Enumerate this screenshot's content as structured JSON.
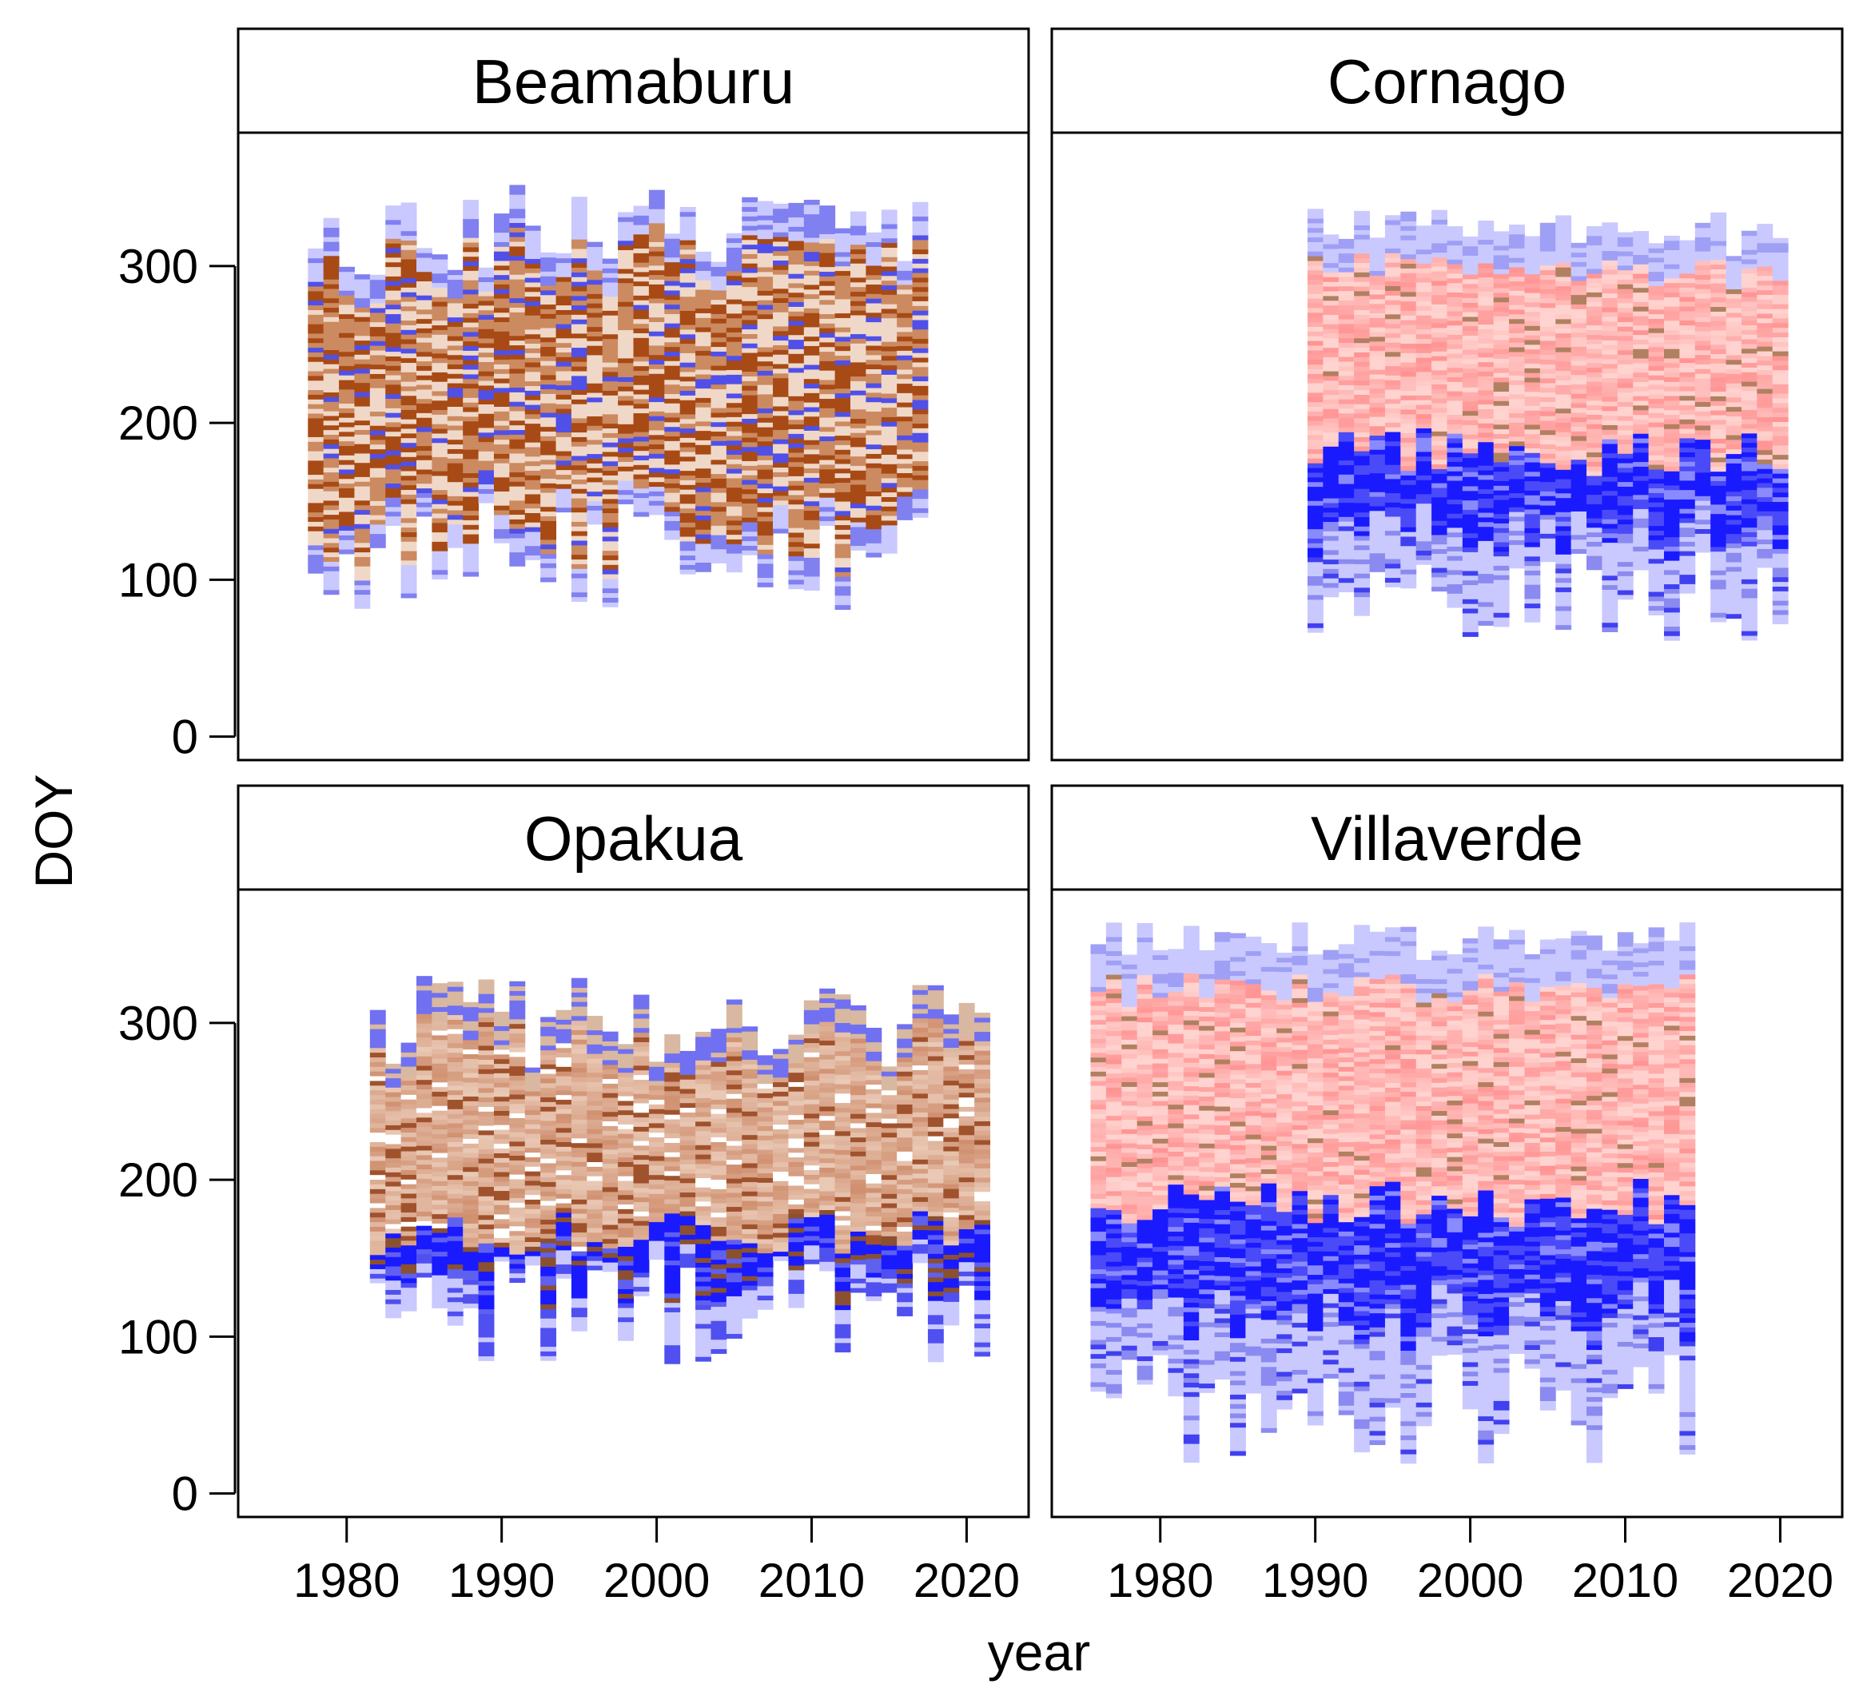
{
  "chart_data": {
    "type": "heatmap",
    "title": "",
    "xlabel": "year",
    "ylabel": "DOY",
    "xlim": [
      1973,
      2024
    ],
    "ylim": [
      -15,
      385
    ],
    "x_ticks": [
      1980,
      1990,
      2000,
      2010,
      2020
    ],
    "x_tick_labels": [
      "1980",
      "1990",
      "2000",
      "2010",
      "2020"
    ],
    "y_ticks": [
      0,
      100,
      200,
      300
    ],
    "y_tick_labels": [
      "0",
      "100",
      "200",
      "300"
    ],
    "panels": [
      {
        "name": "Beamaburu",
        "years": [
          1978,
          2017
        ],
        "doy_min": [
          150,
          80
        ],
        "doy_max": [
          290,
          355
        ],
        "palette": "brown-blue",
        "description_values": {
          "band_low": 150,
          "band_high": 290
        }
      },
      {
        "name": "Cornago",
        "years": [
          1990,
          2020
        ],
        "doy_min": [
          60,
          120
        ],
        "doy_max": [
          305,
          335
        ],
        "palette": "pink-blue",
        "transition_doy": 180
      },
      {
        "name": "Opakua",
        "years": [
          1982,
          2021
        ],
        "doy_min": [
          80,
          150
        ],
        "doy_max": [
          270,
          330
        ],
        "palette": "cream-blue",
        "transition_doy": 165
      },
      {
        "name": "Villaverde",
        "years": [
          1976,
          2014
        ],
        "doy_min": [
          18,
          90
        ],
        "doy_max": [
          340,
          362
        ],
        "palette": "pink-blue",
        "transition_doy": 185
      }
    ]
  }
}
